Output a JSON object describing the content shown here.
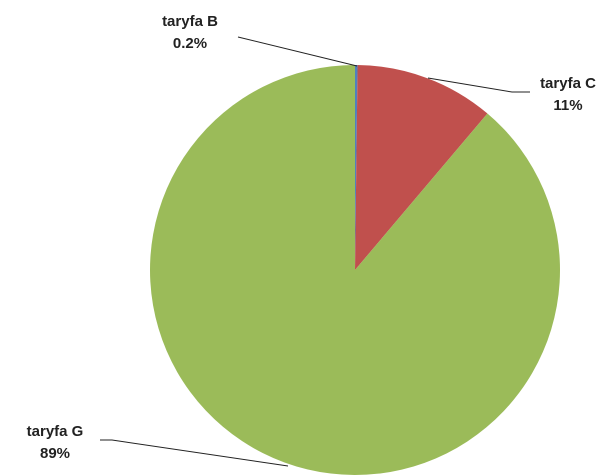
{
  "chart_data": {
    "type": "pie",
    "categories": [
      "taryfa B",
      "taryfa C",
      "taryfa G"
    ],
    "values": [
      0.2,
      11,
      89
    ],
    "value_labels": [
      "0.2%",
      "11%",
      "89%"
    ],
    "colors": [
      "#4f81bd",
      "#c0504d",
      "#9bbb59"
    ]
  }
}
